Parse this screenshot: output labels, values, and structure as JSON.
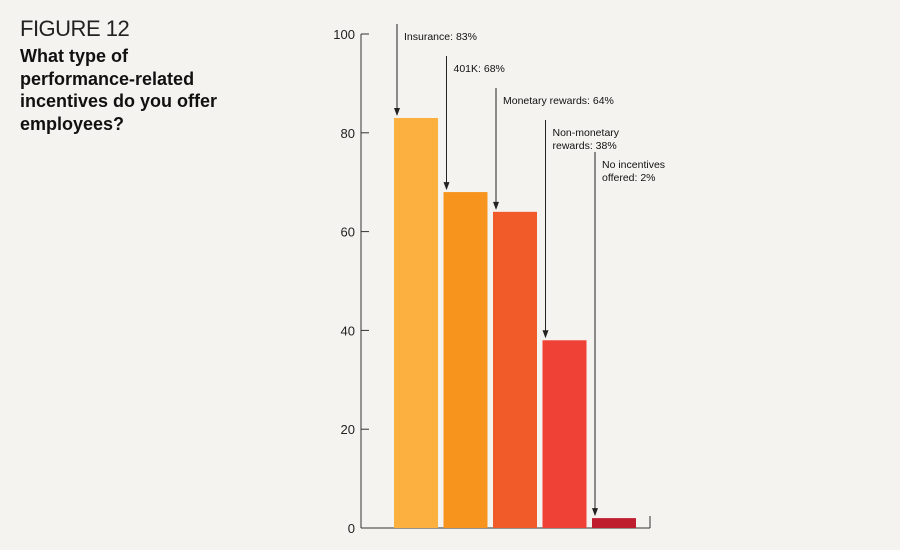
{
  "header": {
    "figure_label": "FIGURE 12",
    "title": "What type of performance-related incentives do you offer employees?"
  },
  "chart_data": {
    "type": "bar",
    "categories": [
      "Insurance",
      "401K",
      "Monetary rewards",
      "Non-monetary rewards",
      "No incentives offered"
    ],
    "values": [
      83,
      68,
      64,
      38,
      2
    ],
    "annotations": [
      [
        "Insurance: 83%"
      ],
      [
        "401K: 68%"
      ],
      [
        "Monetary rewards: 64%"
      ],
      [
        "Non-monetary",
        "rewards: 38%"
      ],
      [
        "No incentives",
        "offered: 2%"
      ]
    ],
    "colors": [
      "#fbb040",
      "#f7941d",
      "#f15a29",
      "#ef4136",
      "#be1e2d"
    ],
    "ylim": [
      0,
      100
    ],
    "yticks": [
      0,
      20,
      40,
      60,
      80,
      100
    ],
    "grid": false,
    "legend": "none"
  }
}
